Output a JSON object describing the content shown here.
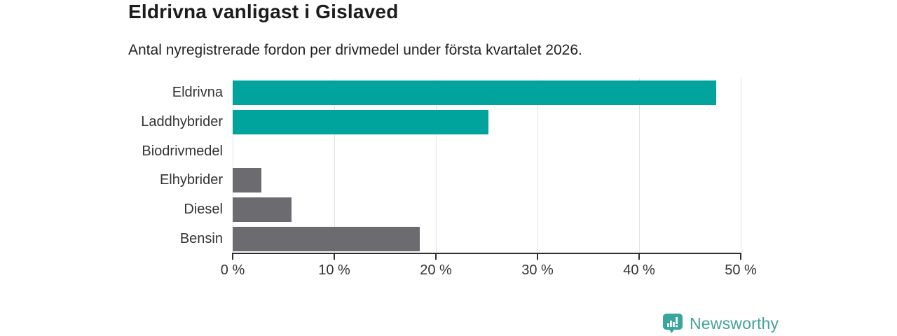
{
  "header": {
    "title": "Eldrivna vanligast i Gislaved",
    "subtitle": "Antal nyregistrerade fordon per drivmedel under första kvartalet 2026."
  },
  "chart_data": {
    "type": "bar",
    "orientation": "horizontal",
    "title": "Eldrivna vanligast i Gislaved",
    "subtitle": "Antal nyregistrerade fordon per drivmedel under första kvartalet 2026.",
    "categories": [
      "Eldrivna",
      "Laddhybrider",
      "Biodrivmedel",
      "Elhybrider",
      "Diesel",
      "Bensin"
    ],
    "values": [
      47.6,
      25.2,
      0,
      2.8,
      5.8,
      18.4
    ],
    "bar_colors": [
      "#00a49c",
      "#00a49c",
      "#00a49c",
      "#6b6b70",
      "#6b6b70",
      "#6b6b70"
    ],
    "unit": "%",
    "xlabel": "",
    "ylabel": "",
    "xlim": [
      0,
      50
    ],
    "x_ticks": [
      0,
      10,
      20,
      30,
      40,
      50
    ],
    "x_tick_labels": [
      "0 %",
      "10 %",
      "20 %",
      "30 %",
      "40 %",
      "50 %"
    ],
    "grid": "vertical-gridlines-on",
    "legend": "none"
  },
  "branding": {
    "logo_text": "Newsworthy",
    "logo_icon": "newsworthy-barchart-pin-icon",
    "logo_color": "#44a29a",
    "logo_icon_color": "#3aa59c"
  },
  "colors": {
    "accent_teal": "#00a49c",
    "neutral_gray": "#6b6b70",
    "axis": "#2e2e2e",
    "gridline": "#e2e2e2",
    "title_text": "#1c1c1c",
    "body_text": "#333333",
    "background": "#ffffff"
  }
}
